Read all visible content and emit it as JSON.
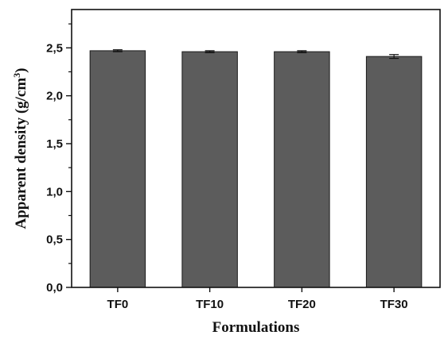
{
  "chart_data": {
    "type": "bar",
    "categories": [
      "TF0",
      "TF10",
      "TF20",
      "TF30"
    ],
    "values": [
      2.47,
      2.46,
      2.46,
      2.41
    ],
    "errors": [
      0.01,
      0.01,
      0.01,
      0.02
    ],
    "xlabel": "Formulations",
    "ylabel": "Apparent density (g/cm",
    "ylabel_sup": "3",
    "ylabel_end": ")",
    "ylim": [
      0,
      2.9
    ],
    "yticks": [
      0.0,
      0.5,
      1.0,
      1.5,
      2.0,
      2.5
    ],
    "ytick_labels": [
      "0,0",
      "0,5",
      "1,0",
      "1,5",
      "2,0",
      "2,5"
    ],
    "grid": false,
    "colors": {
      "bar": "#5c5c5c",
      "axis": "#111111"
    }
  }
}
